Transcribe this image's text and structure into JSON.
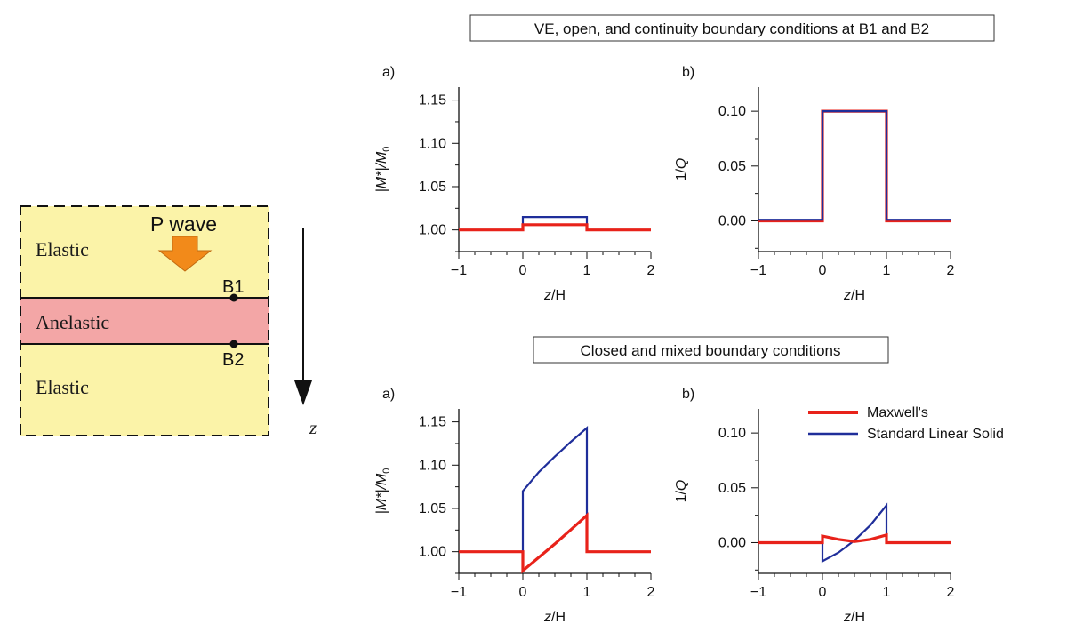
{
  "schematic": {
    "top_layer": "Elastic",
    "middle_layer": "Anelastic",
    "bottom_layer": "Elastic",
    "wave_label": "P wave",
    "boundary_upper": "B1",
    "boundary_lower": "B2",
    "depth_axis": "z",
    "colors": {
      "elastic": "#fbf3a8",
      "anelastic": "#f3a6a6",
      "arrow": "#f28a1a"
    }
  },
  "sections": [
    {
      "title": "VE, open, and continuity boundary conditions at B1 and B2"
    },
    {
      "title": "Closed and mixed boundary conditions"
    }
  ],
  "legend": {
    "items": [
      "Maxwell's",
      "Standard Linear Solid"
    ]
  },
  "series_colors": {
    "maxwell": "#e8221a",
    "sls": "#1f2e9a"
  },
  "chart_data": [
    {
      "type": "line",
      "panel": "a)",
      "xlabel_italic": "z",
      "xlabel_rest": "/H",
      "ylabel_italic": "|M*|/M",
      "ylabel_sub": "0",
      "xlim": [
        -1,
        2
      ],
      "ylim": [
        0.975,
        1.165
      ],
      "xticks": [
        -1,
        0,
        1,
        2
      ],
      "xtick_labels": [
        "−1",
        "0",
        "1",
        "2"
      ],
      "yticks": [
        1.0,
        1.05,
        1.1,
        1.15
      ],
      "ytick_labels": [
        "1.00",
        "1.05",
        "1.10",
        "1.15"
      ],
      "series": [
        {
          "key": "sls",
          "points": [
            [
              -1,
              1.0
            ],
            [
              0,
              1.0
            ],
            [
              0,
              1.015
            ],
            [
              1,
              1.015
            ],
            [
              1,
              1.0
            ],
            [
              2,
              1.0
            ]
          ]
        },
        {
          "key": "maxwell",
          "points": [
            [
              -1,
              1.0
            ],
            [
              0,
              1.0
            ],
            [
              0,
              1.006
            ],
            [
              1,
              1.006
            ],
            [
              1,
              1.0
            ],
            [
              2,
              1.0
            ]
          ]
        }
      ]
    },
    {
      "type": "line",
      "panel": "b)",
      "xlabel_italic": "z",
      "xlabel_rest": "/H",
      "ylabel_italic": "",
      "ylabel_plain": "1/Q",
      "xlim": [
        -1,
        2
      ],
      "ylim": [
        -0.028,
        0.122
      ],
      "xticks": [
        -1,
        0,
        1,
        2
      ],
      "xtick_labels": [
        "−1",
        "0",
        "1",
        "2"
      ],
      "yticks": [
        0.0,
        0.05,
        0.1
      ],
      "ytick_labels": [
        "0.00",
        "0.05",
        "0.10"
      ],
      "series": [
        {
          "key": "maxwell",
          "points": [
            [
              -1,
              0.0
            ],
            [
              0,
              0.0
            ],
            [
              0,
              0.1
            ],
            [
              1,
              0.1
            ],
            [
              1,
              0.0
            ],
            [
              2,
              0.0
            ]
          ]
        },
        {
          "key": "sls",
          "points": [
            [
              -1,
              0.001
            ],
            [
              0,
              0.001
            ],
            [
              0,
              0.1
            ],
            [
              1,
              0.1
            ],
            [
              1,
              0.001
            ],
            [
              2,
              0.001
            ]
          ]
        }
      ]
    },
    {
      "type": "line",
      "panel": "a)",
      "xlabel_italic": "z",
      "xlabel_rest": "/H",
      "ylabel_italic": "|M*|/M",
      "ylabel_sub": "0",
      "xlim": [
        -1,
        2
      ],
      "ylim": [
        0.975,
        1.165
      ],
      "xticks": [
        -1,
        0,
        1,
        2
      ],
      "xtick_labels": [
        "−1",
        "0",
        "1",
        "2"
      ],
      "yticks": [
        1.0,
        1.05,
        1.1,
        1.15
      ],
      "ytick_labels": [
        "1.00",
        "1.05",
        "1.10",
        "1.15"
      ],
      "series": [
        {
          "key": "sls",
          "points": [
            [
              -1,
              1.0
            ],
            [
              0,
              1.0
            ],
            [
              0,
              1.07
            ],
            [
              0.25,
              1.092
            ],
            [
              0.5,
              1.11
            ],
            [
              0.75,
              1.127
            ],
            [
              1,
              1.143
            ],
            [
              1,
              1.0
            ],
            [
              2,
              1.0
            ]
          ]
        },
        {
          "key": "maxwell",
          "points": [
            [
              -1,
              1.0
            ],
            [
              0,
              1.0
            ],
            [
              0,
              0.978
            ],
            [
              0.5,
              1.009
            ],
            [
              1,
              1.042
            ],
            [
              1,
              1.0
            ],
            [
              2,
              1.0
            ]
          ]
        }
      ]
    },
    {
      "type": "line",
      "panel": "b)",
      "xlabel_italic": "z",
      "xlabel_rest": "/H",
      "ylabel_italic": "",
      "ylabel_plain": "1/Q",
      "xlim": [
        -1,
        2
      ],
      "ylim": [
        -0.028,
        0.122
      ],
      "xticks": [
        -1,
        0,
        1,
        2
      ],
      "xtick_labels": [
        "−1",
        "0",
        "1",
        "2"
      ],
      "yticks": [
        0.0,
        0.05,
        0.1
      ],
      "ytick_labels": [
        "0.00",
        "0.05",
        "0.10"
      ],
      "series": [
        {
          "key": "sls",
          "points": [
            [
              -1,
              0.0
            ],
            [
              0,
              0.0
            ],
            [
              0,
              -0.017
            ],
            [
              0.25,
              -0.009
            ],
            [
              0.5,
              0.002
            ],
            [
              0.75,
              0.016
            ],
            [
              1,
              0.034
            ],
            [
              1,
              0.0
            ],
            [
              2,
              0.0
            ]
          ]
        },
        {
          "key": "maxwell",
          "points": [
            [
              -1,
              0.0
            ],
            [
              0,
              0.0
            ],
            [
              0,
              0.006
            ],
            [
              0.25,
              0.003
            ],
            [
              0.5,
              0.001
            ],
            [
              0.75,
              0.003
            ],
            [
              1,
              0.007
            ],
            [
              1,
              0.0
            ],
            [
              2,
              0.0
            ]
          ]
        }
      ]
    }
  ]
}
